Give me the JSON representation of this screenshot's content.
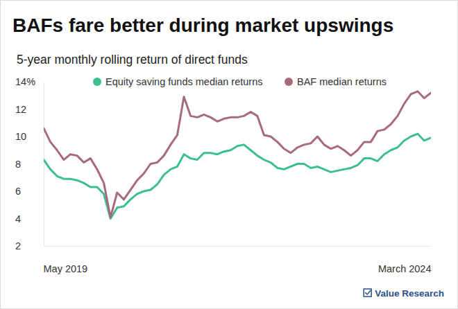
{
  "chart_data": {
    "type": "line",
    "title": "BAFs fare better during market upswings",
    "subtitle": "5-year monthly rolling return of direct funds",
    "source": "Value Research",
    "categories": [
      "May 2019",
      null,
      null,
      null,
      null,
      null,
      null,
      null,
      null,
      null,
      null,
      null,
      null,
      null,
      null,
      null,
      null,
      null,
      null,
      null,
      null,
      null,
      null,
      null,
      null,
      null,
      null,
      null,
      null,
      null,
      null,
      null,
      null,
      null,
      null,
      null,
      null,
      null,
      null,
      null,
      null,
      null,
      null,
      null,
      null,
      null,
      null,
      null,
      null,
      null,
      null,
      null,
      null,
      null,
      null,
      null,
      null,
      null,
      "March 2024"
    ],
    "series": [
      {
        "name": "Equity saving funds median returns",
        "color": "#3dbf8d",
        "values": [
          8.3,
          7.6,
          7.1,
          6.9,
          6.9,
          6.8,
          6.6,
          6.3,
          6.3,
          5.8,
          4.0,
          4.8,
          4.9,
          5.4,
          5.8,
          6.0,
          6.1,
          6.5,
          7.2,
          7.6,
          7.8,
          8.7,
          8.4,
          8.3,
          8.8,
          8.8,
          8.7,
          8.9,
          9.0,
          9.3,
          9.4,
          9.0,
          8.6,
          8.3,
          8.1,
          7.7,
          7.6,
          7.8,
          8.0,
          8.0,
          7.7,
          7.8,
          7.6,
          7.4,
          7.5,
          7.6,
          7.7,
          7.9,
          8.4,
          8.4,
          8.2,
          8.7,
          9.0,
          9.2,
          9.7,
          10.0,
          10.2,
          9.7,
          9.9
        ]
      },
      {
        "name": "BAF median returns",
        "color": "#a86a78",
        "values": [
          10.6,
          9.6,
          9.0,
          8.3,
          8.7,
          8.6,
          8.1,
          8.4,
          7.6,
          6.6,
          4.1,
          5.9,
          5.4,
          6.1,
          6.8,
          7.3,
          8.0,
          8.1,
          8.6,
          9.4,
          10.1,
          12.9,
          11.5,
          11.4,
          11.6,
          11.4,
          11.1,
          11.3,
          11.4,
          11.4,
          11.5,
          11.8,
          11.5,
          10.1,
          10.0,
          9.6,
          9.1,
          8.8,
          9.2,
          9.4,
          9.5,
          10.0,
          9.4,
          9.1,
          9.3,
          9.0,
          8.6,
          9.0,
          9.6,
          9.6,
          10.4,
          10.5,
          10.9,
          11.5,
          12.4,
          13.1,
          13.3,
          12.8,
          13.2
        ]
      }
    ],
    "ylim": [
      2,
      14
    ],
    "yticks": [
      2,
      4,
      6,
      8,
      10,
      12,
      {
        "value": 14,
        "label": "14%"
      }
    ],
    "grid": false,
    "legend": "top"
  }
}
